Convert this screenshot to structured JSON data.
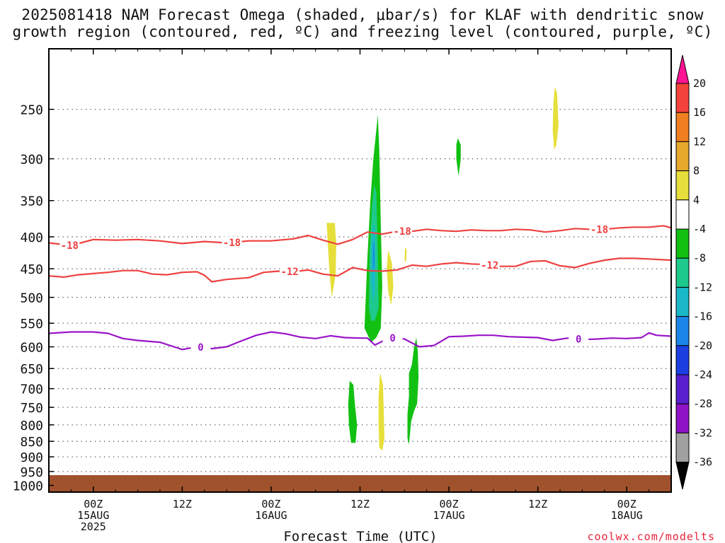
{
  "header": {
    "title_line1": "2025081418 NAM Forecast Omega (shaded, μbar/s) for KLAF with dendritic snow",
    "title_line2": "growth region (contoured, red, ºC) and freezing level (contoured, purple, ºC)"
  },
  "watermark": "coolwx.com/modelts",
  "chart_data": {
    "type": "time-height cross section",
    "xlabel": "Forecast Time (UTC)",
    "x_ticks": [
      {
        "hour": 6,
        "line1": "00Z",
        "line2": "15AUG",
        "line3": "2025"
      },
      {
        "hour": 18,
        "line1": "12Z",
        "line2": "",
        "line3": ""
      },
      {
        "hour": 30,
        "line1": "00Z",
        "line2": "16AUG",
        "line3": ""
      },
      {
        "hour": 42,
        "line1": "12Z",
        "line2": "",
        "line3": ""
      },
      {
        "hour": 54,
        "line1": "00Z",
        "line2": "17AUG",
        "line3": ""
      },
      {
        "hour": 66,
        "line1": "12Z",
        "line2": "",
        "line3": ""
      },
      {
        "hour": 78,
        "line1": "00Z",
        "line2": "18AUG",
        "line3": ""
      }
    ],
    "x_range_hours": [
      0,
      84
    ],
    "y_unit": "hPa",
    "y_scale": "log-pressure",
    "y_ticks": [
      250,
      300,
      350,
      400,
      450,
      500,
      550,
      600,
      650,
      700,
      750,
      800,
      850,
      900,
      950,
      1000
    ],
    "y_range": [
      200,
      1025
    ],
    "grid": "dotted horizontal lines at each pressure level",
    "ground_color": "#a0522d",
    "colorbar": {
      "levels": [
        20,
        16,
        12,
        8,
        4,
        -4,
        -8,
        -12,
        -16,
        -20,
        -24,
        -28,
        -32,
        -36
      ],
      "colors": [
        "#ff1493",
        "#f4433c",
        "#f07f22",
        "#e6a92c",
        "#e6df3b",
        "#ffffff",
        "#12c012",
        "#1ec98c",
        "#1bb8c8",
        "#1c86e8",
        "#1c3fe0",
        "#5a1fcf",
        "#8f12c7",
        "#a0a0a0",
        "#000000"
      ]
    },
    "contours": [
      {
        "label": "-18",
        "color": "#ee4040",
        "label_hours": [
          2.8,
          24.7,
          47.7,
          74.3
        ],
        "points": [
          [
            0,
            409
          ],
          [
            3,
            413
          ],
          [
            6,
            404
          ],
          [
            9,
            405
          ],
          [
            12,
            404
          ],
          [
            15,
            406
          ],
          [
            18,
            410
          ],
          [
            21,
            407
          ],
          [
            24,
            409
          ],
          [
            27,
            406
          ],
          [
            30,
            406
          ],
          [
            33,
            403
          ],
          [
            35,
            398
          ],
          [
            37,
            405
          ],
          [
            39,
            411
          ],
          [
            41,
            404
          ],
          [
            43,
            393
          ],
          [
            45,
            396
          ],
          [
            47,
            392
          ],
          [
            49,
            392
          ],
          [
            51,
            389
          ],
          [
            53,
            391
          ],
          [
            55,
            392
          ],
          [
            57,
            390
          ],
          [
            59,
            391
          ],
          [
            61,
            391
          ],
          [
            63,
            389
          ],
          [
            65,
            390
          ],
          [
            67,
            393
          ],
          [
            69,
            391
          ],
          [
            71,
            388
          ],
          [
            73,
            389
          ],
          [
            75,
            389
          ],
          [
            77,
            387
          ],
          [
            79,
            386
          ],
          [
            81,
            386
          ],
          [
            83,
            384
          ],
          [
            84,
            387
          ]
        ]
      },
      {
        "label": "-12",
        "color": "#ee4040",
        "label_hours": [
          32.5,
          59.5
        ],
        "points": [
          [
            0,
            462
          ],
          [
            2,
            464
          ],
          [
            4,
            460
          ],
          [
            6,
            458
          ],
          [
            8,
            456
          ],
          [
            10,
            453
          ],
          [
            12,
            453
          ],
          [
            14,
            459
          ],
          [
            16,
            460
          ],
          [
            18,
            456
          ],
          [
            20,
            455
          ],
          [
            21,
            461
          ],
          [
            22,
            472
          ],
          [
            24,
            468
          ],
          [
            27,
            465
          ],
          [
            29,
            456
          ],
          [
            31,
            454
          ],
          [
            33,
            455
          ],
          [
            35,
            452
          ],
          [
            37,
            459
          ],
          [
            39,
            462
          ],
          [
            41,
            448
          ],
          [
            43,
            453
          ],
          [
            45,
            454
          ],
          [
            47,
            452
          ],
          [
            49,
            444
          ],
          [
            51,
            446
          ],
          [
            53,
            442
          ],
          [
            55,
            440
          ],
          [
            57,
            442
          ],
          [
            59,
            443
          ],
          [
            61,
            446
          ],
          [
            63,
            446
          ],
          [
            65,
            438
          ],
          [
            67,
            437
          ],
          [
            69,
            445
          ],
          [
            71,
            448
          ],
          [
            73,
            441
          ],
          [
            75,
            436
          ],
          [
            77,
            433
          ],
          [
            79,
            433
          ],
          [
            81,
            434
          ],
          [
            84,
            436
          ]
        ]
      },
      {
        "label": "0",
        "color": "#9a14c8",
        "label_hours": [
          20.5,
          46.4,
          71.5
        ],
        "points": [
          [
            0,
            571
          ],
          [
            3,
            568
          ],
          [
            6,
            568
          ],
          [
            8,
            571
          ],
          [
            10,
            582
          ],
          [
            12,
            586
          ],
          [
            15,
            590
          ],
          [
            18,
            606
          ],
          [
            20,
            600
          ],
          [
            22,
            604
          ],
          [
            24,
            600
          ],
          [
            26,
            587
          ],
          [
            28,
            575
          ],
          [
            30,
            568
          ],
          [
            32,
            572
          ],
          [
            34,
            579
          ],
          [
            36,
            582
          ],
          [
            38,
            576
          ],
          [
            40,
            580
          ],
          [
            42,
            581
          ],
          [
            43,
            581
          ],
          [
            44,
            596
          ],
          [
            46,
            580
          ],
          [
            48,
            583
          ],
          [
            50,
            600
          ],
          [
            52,
            597
          ],
          [
            54,
            578
          ],
          [
            56,
            577
          ],
          [
            58,
            575
          ],
          [
            60,
            575
          ],
          [
            62,
            578
          ],
          [
            64,
            579
          ],
          [
            66,
            580
          ],
          [
            68,
            586
          ],
          [
            70,
            581
          ],
          [
            72,
            584
          ],
          [
            74,
            583
          ],
          [
            76,
            581
          ],
          [
            78,
            582
          ],
          [
            80,
            580
          ],
          [
            81,
            570
          ],
          [
            82,
            575
          ],
          [
            84,
            577
          ]
        ]
      }
    ],
    "omega_shaded": [
      {
        "value_band": "4 to 8",
        "color": "#e6df3b",
        "points": [
          [
            37.5,
            380
          ],
          [
            38.6,
            380
          ],
          [
            38.8,
            410
          ],
          [
            38.7,
            460
          ],
          [
            38.2,
            500
          ],
          [
            37.9,
            460
          ],
          [
            37.7,
            420
          ]
        ]
      },
      {
        "value_band": "-4 to -8",
        "color": "#12c012",
        "points": [
          [
            42.6,
            560
          ],
          [
            43.0,
            430
          ],
          [
            43.4,
            350
          ],
          [
            43.8,
            300
          ],
          [
            44.2,
            270
          ],
          [
            44.4,
            255
          ],
          [
            44.6,
            290
          ],
          [
            44.8,
            380
          ],
          [
            45.0,
            480
          ],
          [
            44.8,
            560
          ],
          [
            44.2,
            580
          ],
          [
            43.5,
            590
          ],
          [
            43.2,
            580
          ]
        ]
      },
      {
        "value_band": "-8 to -12",
        "color": "#1ec98c",
        "points": [
          [
            43.2,
            520
          ],
          [
            43.3,
            420
          ],
          [
            43.6,
            360
          ],
          [
            43.9,
            330
          ],
          [
            44.2,
            340
          ],
          [
            44.4,
            420
          ],
          [
            44.5,
            520
          ],
          [
            44.0,
            545
          ],
          [
            43.5,
            545
          ]
        ]
      },
      {
        "value_band": "-12 to -16",
        "color": "#1bb8c8",
        "points": [
          [
            43.5,
            470
          ],
          [
            43.55,
            410
          ],
          [
            43.8,
            380
          ],
          [
            44.0,
            390
          ],
          [
            44.1,
            440
          ],
          [
            44.0,
            490
          ],
          [
            43.8,
            510
          ]
        ]
      },
      {
        "value_band": "-16 to -20",
        "color": "#1c86e8",
        "points": [
          [
            43.75,
            440
          ],
          [
            43.8,
            410
          ],
          [
            43.9,
            405
          ],
          [
            43.95,
            430
          ],
          [
            43.9,
            455
          ]
        ]
      },
      {
        "value_band": "4 to 8",
        "color": "#e6df3b",
        "points": [
          [
            45.8,
            420
          ],
          [
            46.3,
            440
          ],
          [
            46.5,
            480
          ],
          [
            46.2,
            515
          ],
          [
            45.8,
            490
          ],
          [
            45.6,
            450
          ]
        ]
      },
      {
        "value_band": "4 to 8",
        "color": "#e6df3b",
        "points": [
          [
            48.1,
            415
          ],
          [
            48.3,
            420
          ],
          [
            48.2,
            440
          ],
          [
            48.0,
            435
          ]
        ]
      },
      {
        "value_band": "-4 to -8",
        "color": "#12c012",
        "points": [
          [
            55.2,
            278
          ],
          [
            55.6,
            285
          ],
          [
            55.6,
            300
          ],
          [
            55.3,
            320
          ],
          [
            55.0,
            300
          ],
          [
            55.0,
            285
          ]
        ]
      },
      {
        "value_band": "4 to 8",
        "color": "#e6df3b",
        "points": [
          [
            68.3,
            230
          ],
          [
            68.6,
            236
          ],
          [
            68.8,
            265
          ],
          [
            68.5,
            285
          ],
          [
            68.2,
            290
          ],
          [
            68.0,
            270
          ],
          [
            68.1,
            245
          ]
        ]
      },
      {
        "value_band": "-4 to -8",
        "color": "#12c012",
        "points": [
          [
            48.6,
            662
          ],
          [
            49.0,
            640
          ],
          [
            49.3,
            600
          ],
          [
            49.6,
            580
          ],
          [
            49.8,
            610
          ],
          [
            49.9,
            670
          ],
          [
            49.7,
            740
          ],
          [
            49.3,
            760
          ],
          [
            48.9,
            790
          ],
          [
            48.6,
            860
          ],
          [
            48.4,
            840
          ],
          [
            48.4,
            770
          ],
          [
            48.6,
            720
          ]
        ]
      },
      {
        "value_band": "-4 to -8",
        "color": "#12c012",
        "points": [
          [
            40.6,
            680
          ],
          [
            41.1,
            690
          ],
          [
            41.3,
            740
          ],
          [
            41.6,
            800
          ],
          [
            41.4,
            855
          ],
          [
            40.8,
            855
          ],
          [
            40.5,
            800
          ],
          [
            40.4,
            740
          ]
        ]
      },
      {
        "value_band": "4 to 8",
        "color": "#e6df3b",
        "points": [
          [
            44.7,
            660
          ],
          [
            45.1,
            690
          ],
          [
            45.2,
            760
          ],
          [
            45.3,
            840
          ],
          [
            45.0,
            880
          ],
          [
            44.6,
            870
          ],
          [
            44.5,
            800
          ],
          [
            44.5,
            720
          ]
        ]
      }
    ]
  }
}
